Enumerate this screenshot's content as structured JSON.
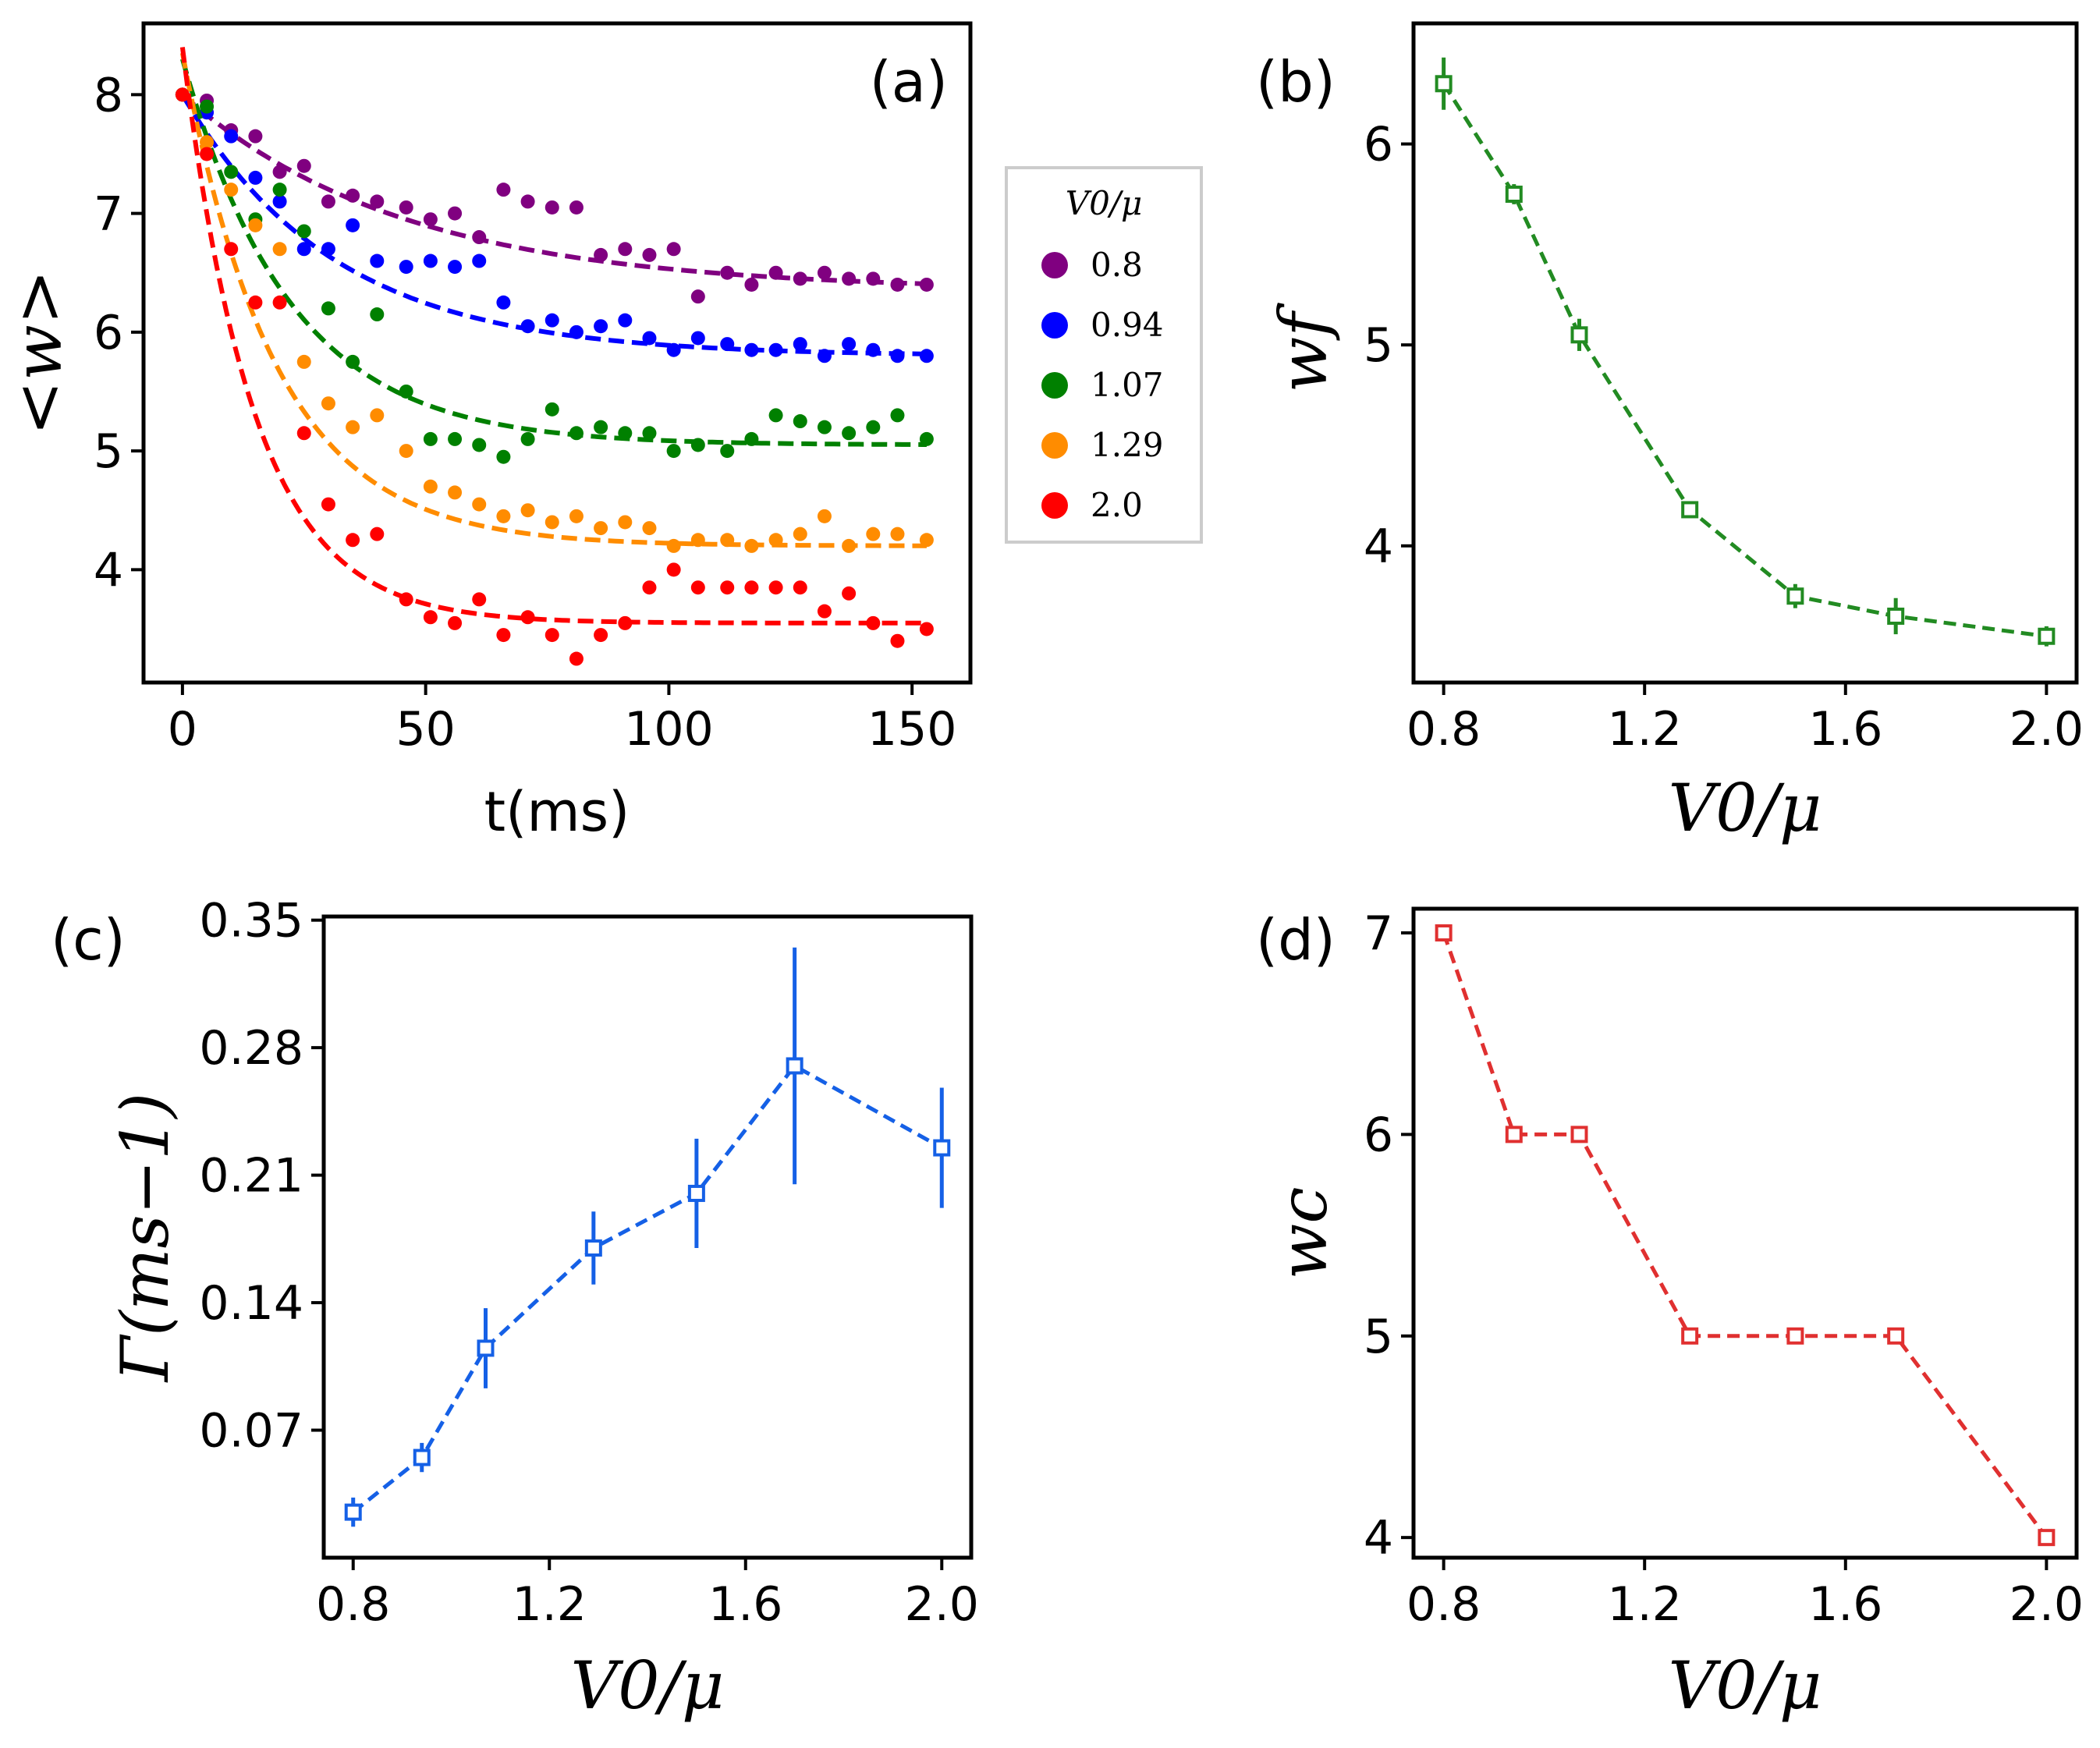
{
  "chart_data": [
    {
      "id": "a",
      "panel_label": "(a)",
      "type": "scatter",
      "xlabel": "t(ms)",
      "ylabel": "<w>",
      "xlim": [
        -8,
        162
      ],
      "ylim": [
        3.05,
        8.6
      ],
      "xticks": [
        0,
        50,
        100,
        150
      ],
      "yticks": [
        4,
        5,
        6,
        7,
        8
      ],
      "legend": {
        "title": "V0/μ",
        "position": "right-outside",
        "entries": [
          "0.8",
          "0.94",
          "1.07",
          "1.29",
          "2.0"
        ]
      },
      "series": [
        {
          "name": "0.8",
          "color": "#800080",
          "points": [
            [
              0,
              8.0
            ],
            [
              5,
              7.95
            ],
            [
              10,
              7.7
            ],
            [
              15,
              7.65
            ],
            [
              20,
              7.35
            ],
            [
              25,
              7.4
            ],
            [
              30,
              7.1
            ],
            [
              35,
              7.15
            ],
            [
              40,
              7.1
            ],
            [
              46,
              7.05
            ],
            [
              51,
              6.95
            ],
            [
              56,
              7.0
            ],
            [
              61,
              6.8
            ],
            [
              66,
              7.2
            ],
            [
              71,
              7.1
            ],
            [
              76,
              7.05
            ],
            [
              81,
              7.05
            ],
            [
              86,
              6.65
            ],
            [
              91,
              6.7
            ],
            [
              96,
              6.65
            ],
            [
              101,
              6.7
            ],
            [
              106,
              6.3
            ],
            [
              112,
              6.5
            ],
            [
              117,
              6.4
            ],
            [
              122,
              6.5
            ],
            [
              127,
              6.45
            ],
            [
              132,
              6.5
            ],
            [
              137,
              6.45
            ],
            [
              142,
              6.45
            ],
            [
              147,
              6.4
            ],
            [
              153,
              6.4
            ]
          ],
          "fit": {
            "a": 6.35,
            "b": 1.65,
            "rate": 0.022
          }
        },
        {
          "name": "0.94",
          "color": "#0000ff",
          "points": [
            [
              0,
              8.0
            ],
            [
              5,
              7.85
            ],
            [
              10,
              7.65
            ],
            [
              15,
              7.3
            ],
            [
              20,
              7.1
            ],
            [
              25,
              6.7
            ],
            [
              30,
              6.7
            ],
            [
              35,
              6.9
            ],
            [
              40,
              6.6
            ],
            [
              46,
              6.55
            ],
            [
              51,
              6.6
            ],
            [
              56,
              6.55
            ],
            [
              61,
              6.6
            ],
            [
              66,
              6.25
            ],
            [
              71,
              6.05
            ],
            [
              76,
              6.1
            ],
            [
              81,
              6.0
            ],
            [
              86,
              6.05
            ],
            [
              91,
              6.1
            ],
            [
              96,
              5.95
            ],
            [
              101,
              5.85
            ],
            [
              106,
              5.95
            ],
            [
              112,
              5.9
            ],
            [
              117,
              5.85
            ],
            [
              122,
              5.85
            ],
            [
              127,
              5.9
            ],
            [
              132,
              5.8
            ],
            [
              137,
              5.9
            ],
            [
              142,
              5.85
            ],
            [
              147,
              5.8
            ],
            [
              153,
              5.8
            ]
          ],
          "fit": {
            "a": 5.8,
            "b": 2.2,
            "rate": 0.032
          }
        },
        {
          "name": "1.07",
          "color": "#008000",
          "points": [
            [
              0,
              8.0
            ],
            [
              5,
              7.9
            ],
            [
              10,
              7.35
            ],
            [
              15,
              6.95
            ],
            [
              20,
              7.2
            ],
            [
              25,
              6.85
            ],
            [
              30,
              6.2
            ],
            [
              35,
              5.75
            ],
            [
              40,
              6.15
            ],
            [
              46,
              5.5
            ],
            [
              51,
              5.1
            ],
            [
              56,
              5.1
            ],
            [
              61,
              5.05
            ],
            [
              66,
              4.95
            ],
            [
              71,
              5.1
            ],
            [
              76,
              5.35
            ],
            [
              81,
              5.15
            ],
            [
              86,
              5.2
            ],
            [
              91,
              5.15
            ],
            [
              96,
              5.15
            ],
            [
              101,
              5.0
            ],
            [
              106,
              5.05
            ],
            [
              112,
              5.0
            ],
            [
              117,
              5.1
            ],
            [
              122,
              5.3
            ],
            [
              127,
              5.25
            ],
            [
              132,
              5.2
            ],
            [
              137,
              5.15
            ],
            [
              142,
              5.2
            ],
            [
              147,
              5.3
            ],
            [
              153,
              5.1
            ]
          ],
          "fit": {
            "a": 5.05,
            "b": 3.25,
            "rate": 0.045
          }
        },
        {
          "name": "1.29",
          "color": "#ff8c00",
          "points": [
            [
              0,
              8.0
            ],
            [
              5,
              7.6
            ],
            [
              10,
              7.2
            ],
            [
              15,
              6.9
            ],
            [
              20,
              6.7
            ],
            [
              25,
              5.75
            ],
            [
              30,
              5.4
            ],
            [
              35,
              5.2
            ],
            [
              40,
              5.3
            ],
            [
              46,
              5.0
            ],
            [
              51,
              4.7
            ],
            [
              56,
              4.65
            ],
            [
              61,
              4.55
            ],
            [
              66,
              4.45
            ],
            [
              71,
              4.5
            ],
            [
              76,
              4.4
            ],
            [
              81,
              4.45
            ],
            [
              86,
              4.35
            ],
            [
              91,
              4.4
            ],
            [
              96,
              4.35
            ],
            [
              101,
              4.2
            ],
            [
              106,
              4.25
            ],
            [
              112,
              4.25
            ],
            [
              117,
              4.2
            ],
            [
              122,
              4.25
            ],
            [
              127,
              4.3
            ],
            [
              132,
              4.45
            ],
            [
              137,
              4.2
            ],
            [
              142,
              4.3
            ],
            [
              147,
              4.3
            ],
            [
              153,
              4.25
            ]
          ],
          "fit": {
            "a": 4.2,
            "b": 4.15,
            "rate": 0.052
          }
        },
        {
          "name": "2.0",
          "color": "#ff0000",
          "points": [
            [
              0,
              8.0
            ],
            [
              5,
              7.5
            ],
            [
              10,
              6.7
            ],
            [
              15,
              6.25
            ],
            [
              20,
              6.25
            ],
            [
              25,
              5.15
            ],
            [
              30,
              4.55
            ],
            [
              35,
              4.25
            ],
            [
              40,
              4.3
            ],
            [
              46,
              3.75
            ],
            [
              51,
              3.6
            ],
            [
              56,
              3.55
            ],
            [
              61,
              3.75
            ],
            [
              66,
              3.45
            ],
            [
              71,
              3.6
            ],
            [
              76,
              3.45
            ],
            [
              81,
              3.25
            ],
            [
              86,
              3.45
            ],
            [
              91,
              3.55
            ],
            [
              96,
              3.85
            ],
            [
              101,
              4.0
            ],
            [
              106,
              3.85
            ],
            [
              112,
              3.85
            ],
            [
              117,
              3.85
            ],
            [
              122,
              3.85
            ],
            [
              127,
              3.85
            ],
            [
              132,
              3.65
            ],
            [
              137,
              3.8
            ],
            [
              142,
              3.55
            ],
            [
              147,
              3.4
            ],
            [
              153,
              3.5
            ]
          ],
          "fit": {
            "a": 3.55,
            "b": 4.85,
            "rate": 0.068
          }
        }
      ]
    },
    {
      "id": "b",
      "panel_label": "(b)",
      "type": "line",
      "xlabel": "V0/μ",
      "ylabel": "wf",
      "color": "#228B22",
      "xlim": [
        0.74,
        2.06
      ],
      "ylim": [
        3.32,
        6.6
      ],
      "xticks": [
        0.8,
        1.2,
        1.6,
        2.0
      ],
      "xtick_labels": [
        "0.8",
        "1.2",
        "1.6",
        "2.0"
      ],
      "yticks": [
        4,
        5,
        6
      ],
      "x": [
        0.8,
        0.94,
        1.07,
        1.29,
        1.5,
        1.7,
        2.0
      ],
      "y": [
        6.3,
        5.75,
        5.05,
        4.18,
        3.75,
        3.65,
        3.55
      ],
      "yerr": [
        0.13,
        0.05,
        0.08,
        0.03,
        0.06,
        0.09,
        0.05
      ]
    },
    {
      "id": "c",
      "panel_label": "(c)",
      "type": "line",
      "xlabel": "V0/μ",
      "ylabel": "Γ(ms−1)",
      "color": "#1560e6",
      "xlim": [
        0.74,
        2.06
      ],
      "ylim": [
        0.0,
        0.352
      ],
      "xticks": [
        0.8,
        1.2,
        1.6,
        2.0
      ],
      "xtick_labels": [
        "0.8",
        "1.2",
        "1.6",
        "2.0"
      ],
      "yticks": [
        0.07,
        0.14,
        0.21,
        0.28,
        0.35
      ],
      "ytick_labels": [
        "0.07",
        "0.14",
        "0.21",
        "0.28",
        "0.35"
      ],
      "x": [
        0.8,
        0.94,
        1.07,
        1.29,
        1.5,
        1.7,
        2.0
      ],
      "y": [
        0.025,
        0.055,
        0.115,
        0.17,
        0.2,
        0.27,
        0.225
      ],
      "yerr": [
        0.008,
        0.008,
        0.022,
        0.02,
        0.03,
        0.065,
        0.033
      ]
    },
    {
      "id": "d",
      "panel_label": "(d)",
      "type": "line",
      "xlabel": "V0/μ",
      "ylabel": "wc",
      "color": "#e03030",
      "xlim": [
        0.74,
        2.06
      ],
      "ylim": [
        3.9,
        7.12
      ],
      "xticks": [
        0.8,
        1.2,
        1.6,
        2.0
      ],
      "xtick_labels": [
        "0.8",
        "1.2",
        "1.6",
        "2.0"
      ],
      "yticks": [
        4,
        5,
        6,
        7
      ],
      "x": [
        0.8,
        0.94,
        1.07,
        1.29,
        1.5,
        1.7,
        2.0
      ],
      "y": [
        7,
        6,
        6,
        5,
        5,
        5,
        4
      ]
    }
  ]
}
